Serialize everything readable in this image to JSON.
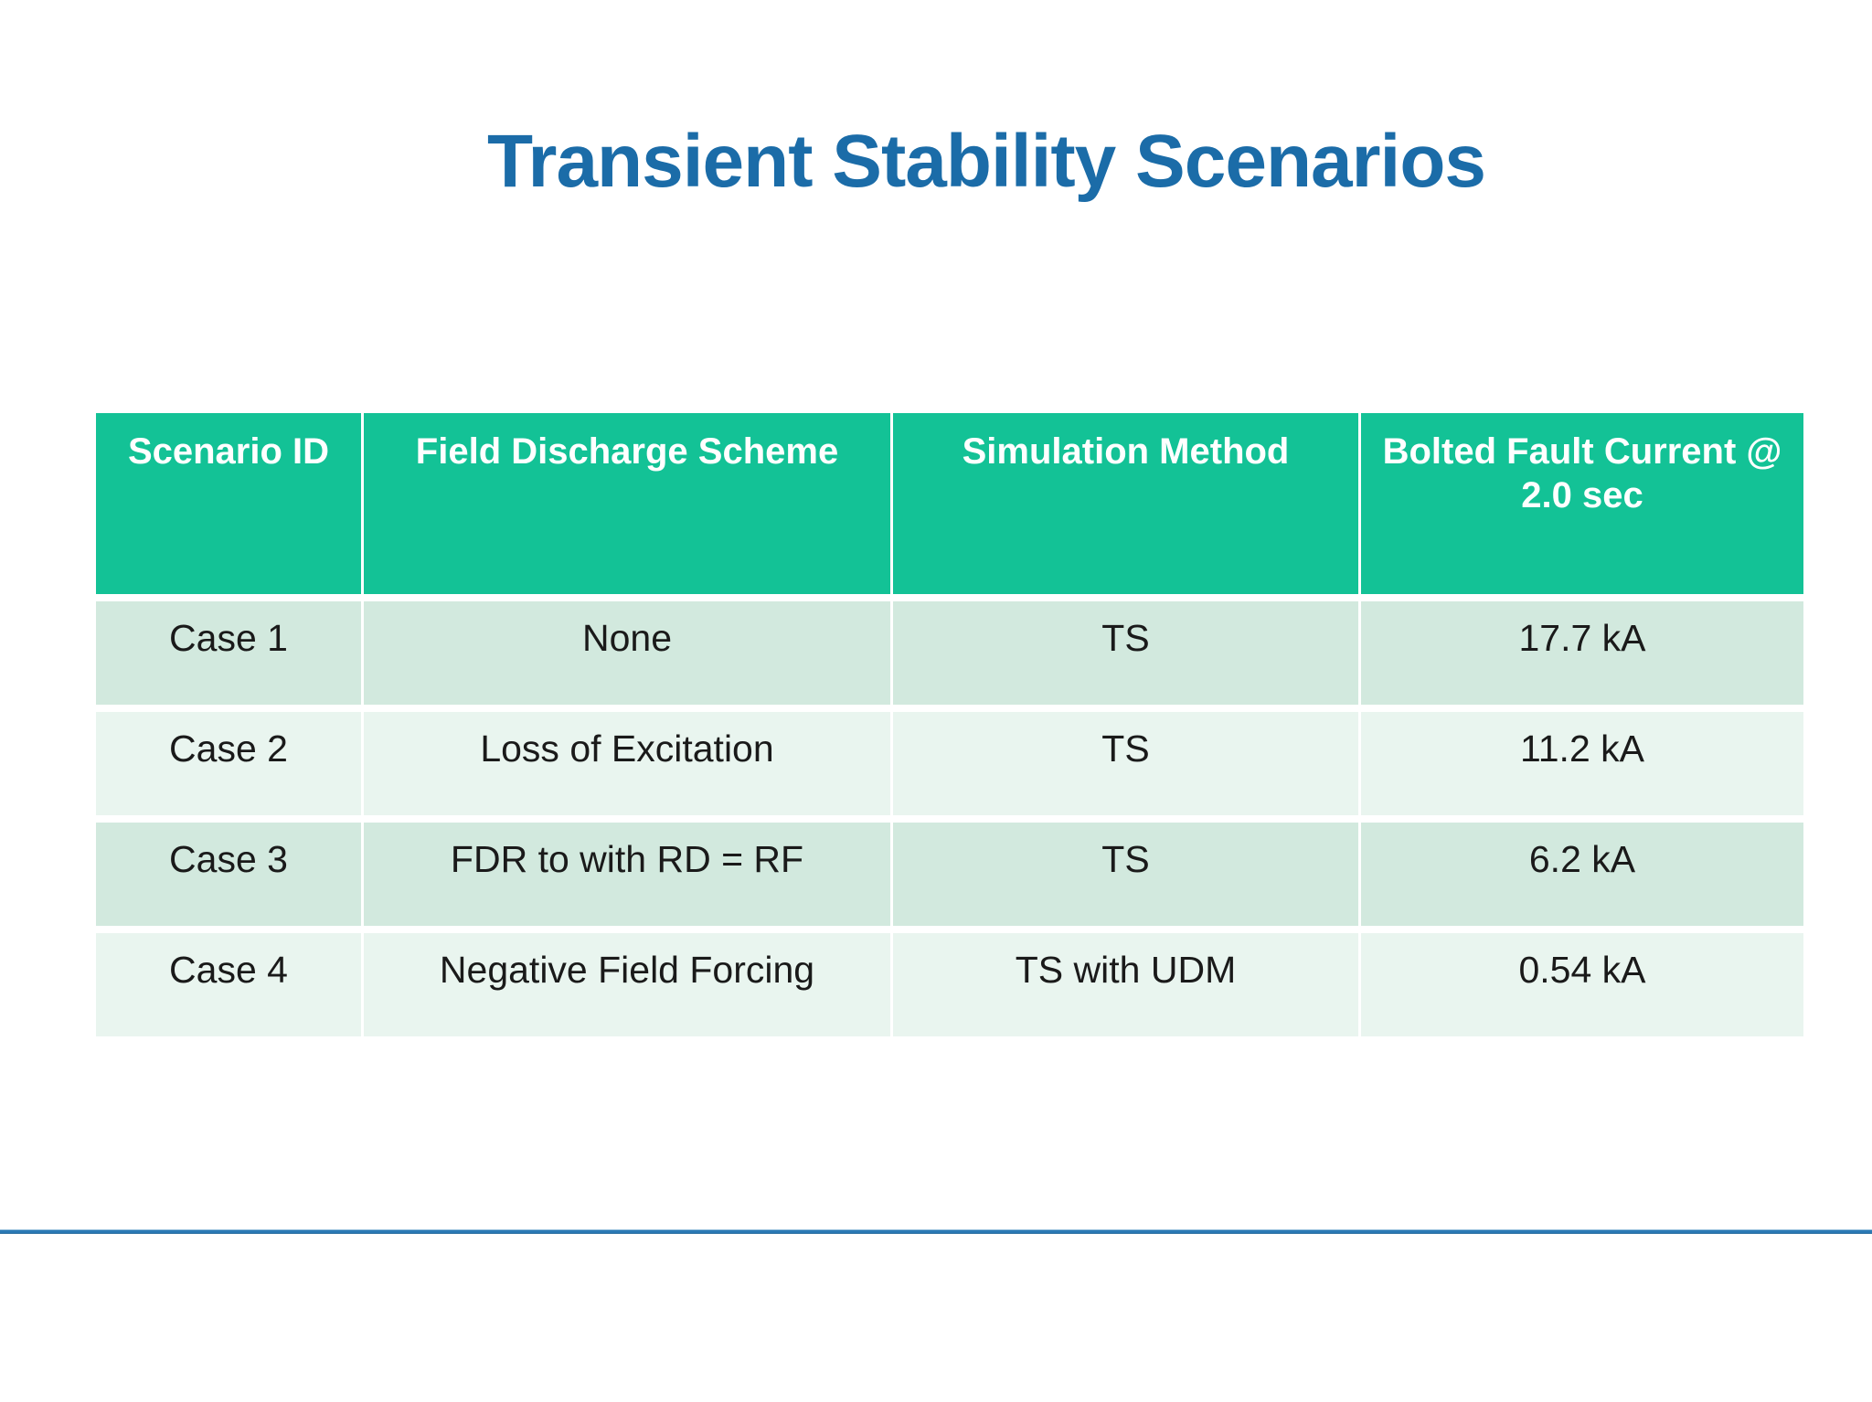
{
  "slide": {
    "title": "Transient Stability Scenarios"
  },
  "table": {
    "headers": [
      "Scenario ID",
      "Field Discharge Scheme",
      "Simulation Method",
      "Bolted Fault Current @ 2.0 sec"
    ],
    "rows": [
      [
        "Case 1",
        "None",
        "TS",
        "17.7 kA"
      ],
      [
        "Case 2",
        "Loss of Excitation",
        "TS",
        "11.2 kA"
      ],
      [
        "Case 3",
        "FDR to with RD = RF",
        "TS",
        "6.2 kA"
      ],
      [
        "Case 4",
        "Negative Field Forcing",
        "TS with UDM",
        "0.54 kA"
      ]
    ]
  },
  "colors": {
    "title_text": "#1B6CA8",
    "header_bg": "#13C296",
    "header_text": "#FFFFFF",
    "row_bg_dark": "#D2E9DE",
    "row_bg_light": "#E9F5EF",
    "body_text": "#1A1A1A",
    "footer_line": "#2B7AB5"
  }
}
